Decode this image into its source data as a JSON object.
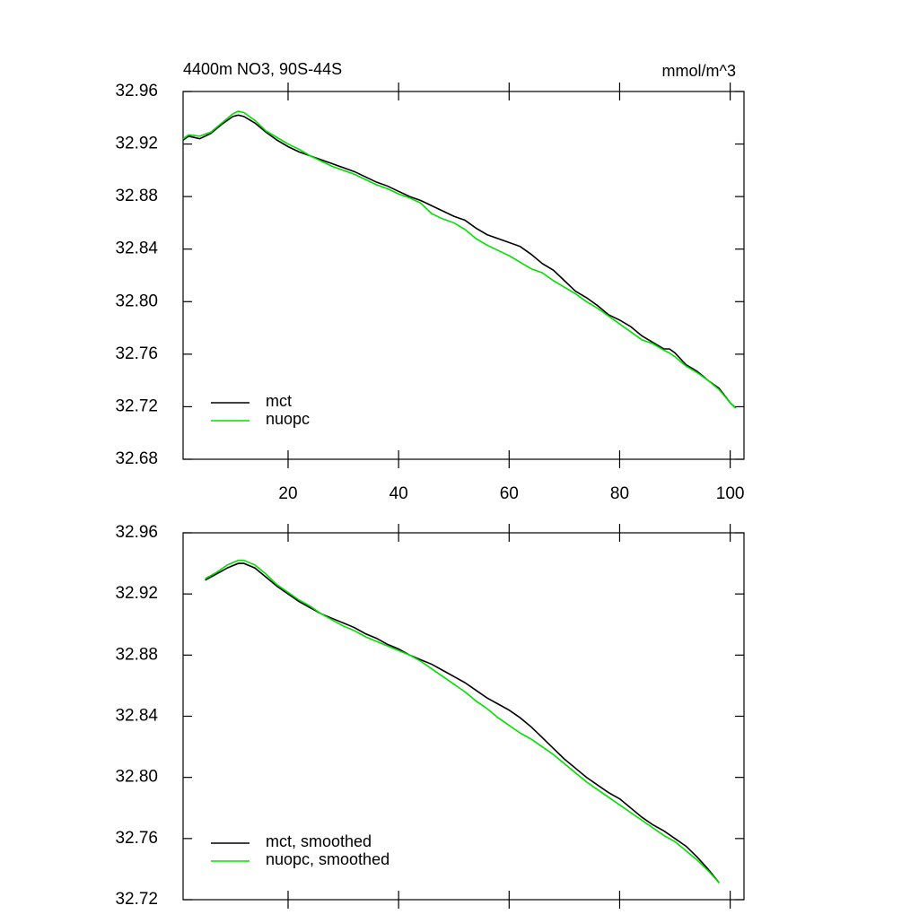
{
  "chart_data": [
    {
      "type": "line",
      "title": "4400m NO3, 90S-44S",
      "units_label": "mmol/m^3",
      "x": [
        1,
        2,
        4,
        6,
        8,
        10,
        11,
        12,
        14,
        16,
        18,
        20,
        22,
        24,
        26,
        28,
        30,
        32,
        34,
        36,
        38,
        40,
        42,
        44,
        46,
        48,
        50,
        52,
        54,
        56,
        58,
        60,
        62,
        64,
        66,
        68,
        70,
        72,
        74,
        76,
        78,
        80,
        82,
        84,
        86,
        88,
        89,
        90,
        92,
        94,
        96,
        98,
        100,
        101
      ],
      "series": [
        {
          "name": "mct",
          "color": "#000000",
          "values": [
            32.923,
            32.926,
            32.924,
            32.928,
            32.935,
            32.941,
            32.942,
            32.941,
            32.936,
            32.929,
            32.923,
            32.918,
            32.914,
            32.911,
            32.908,
            32.905,
            32.902,
            32.899,
            32.895,
            32.891,
            32.888,
            32.884,
            32.88,
            32.877,
            32.873,
            32.869,
            32.865,
            32.862,
            32.856,
            32.851,
            32.848,
            32.845,
            32.842,
            32.836,
            32.829,
            32.824,
            32.816,
            32.808,
            32.803,
            32.797,
            32.79,
            32.786,
            32.781,
            32.774,
            32.769,
            32.764,
            32.764,
            32.761,
            32.752,
            32.747,
            32.74,
            32.734,
            32.723,
            32.719
          ]
        },
        {
          "name": "nuopc",
          "color": "#00e000",
          "values": [
            32.924,
            32.927,
            32.926,
            32.929,
            32.936,
            32.943,
            32.945,
            32.944,
            32.938,
            32.93,
            32.925,
            32.92,
            32.916,
            32.911,
            32.907,
            32.903,
            32.9,
            32.897,
            32.893,
            32.889,
            32.886,
            32.882,
            32.879,
            32.875,
            32.867,
            32.863,
            32.86,
            32.855,
            32.848,
            32.843,
            32.839,
            32.835,
            32.83,
            32.825,
            32.822,
            32.816,
            32.811,
            32.806,
            32.8,
            32.795,
            32.789,
            32.783,
            32.777,
            32.771,
            32.768,
            32.763,
            32.761,
            32.758,
            32.751,
            32.746,
            32.74,
            32.733,
            32.723,
            32.719
          ]
        }
      ],
      "xlim": [
        1,
        102.5
      ],
      "xticks": [
        20,
        40,
        60,
        80,
        100
      ],
      "ylim": [
        32.68,
        32.96
      ],
      "yticks": [
        32.68,
        32.72,
        32.76,
        {
          "value": 32.8,
          "label": "32.80"
        },
        32.84,
        32.88,
        32.92,
        32.96
      ],
      "legend": "lower left"
    },
    {
      "type": "line",
      "x": [
        5,
        7,
        9,
        11,
        12,
        14,
        16,
        18,
        20,
        22,
        24,
        26,
        28,
        30,
        32,
        34,
        36,
        38,
        40,
        42,
        44,
        46,
        48,
        50,
        52,
        54,
        56,
        58,
        60,
        62,
        64,
        66,
        68,
        70,
        72,
        74,
        76,
        78,
        80,
        82,
        84,
        86,
        88,
        90,
        92,
        94,
        96,
        98
      ],
      "series": [
        {
          "name": "mct, smoothed",
          "color": "#000000",
          "values": [
            32.929,
            32.933,
            32.937,
            32.94,
            32.94,
            32.937,
            32.931,
            32.925,
            32.92,
            32.915,
            32.911,
            32.907,
            32.904,
            32.901,
            32.898,
            32.894,
            32.891,
            32.887,
            32.884,
            32.88,
            32.877,
            32.874,
            32.87,
            32.866,
            32.862,
            32.857,
            32.852,
            32.848,
            32.844,
            32.839,
            32.833,
            32.826,
            32.819,
            32.812,
            32.806,
            32.8,
            32.795,
            32.79,
            32.786,
            32.78,
            32.774,
            32.769,
            32.765,
            32.76,
            32.755,
            32.748,
            32.74,
            32.731
          ]
        },
        {
          "name": "nuopc, smoothed",
          "color": "#00e000",
          "values": [
            32.93,
            32.934,
            32.939,
            32.942,
            32.942,
            32.939,
            32.933,
            32.926,
            32.921,
            32.916,
            32.912,
            32.907,
            32.903,
            32.899,
            32.896,
            32.892,
            32.889,
            32.886,
            32.883,
            32.88,
            32.876,
            32.871,
            32.866,
            32.861,
            32.856,
            32.85,
            32.845,
            32.839,
            32.834,
            32.829,
            32.825,
            32.82,
            32.815,
            32.809,
            32.803,
            32.797,
            32.792,
            32.787,
            32.782,
            32.777,
            32.772,
            32.767,
            32.762,
            32.758,
            32.752,
            32.746,
            32.739,
            32.731
          ]
        }
      ],
      "xlim": [
        1,
        102.5
      ],
      "xticks": [
        20,
        40,
        60,
        80,
        100
      ],
      "ylim": [
        32.72,
        32.96
      ],
      "yticks": [
        32.72,
        32.76,
        {
          "value": 32.8,
          "label": "32.80"
        },
        32.84,
        32.88,
        32.92,
        32.96
      ],
      "legend": "lower left"
    }
  ]
}
